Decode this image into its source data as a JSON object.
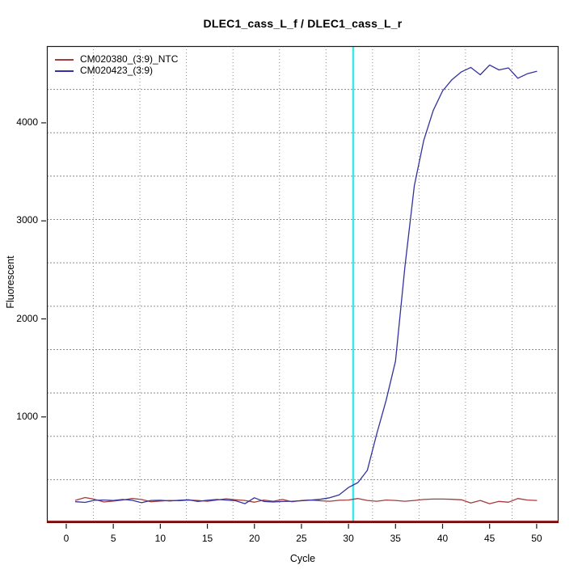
{
  "window": {
    "background": "#ffffff"
  },
  "chart_data": {
    "type": "line",
    "title": "DLEC1_cass_L_f / DLEC1_cass_L_r",
    "xlabel": "Cycle",
    "ylabel": "Fluorescent",
    "x_ticks": [
      0,
      5,
      10,
      15,
      20,
      25,
      30,
      35,
      40,
      45,
      50
    ],
    "y_ticks": [
      1000,
      2000,
      3000,
      4000
    ],
    "xlim": [
      -2.06,
      52.33
    ],
    "ylim": [
      -82,
      4783
    ],
    "grid": {
      "nx": 11,
      "ny": 11,
      "color": "#8c8c8c",
      "style": "dotted"
    },
    "legend_position": "top-left",
    "cycles": [
      1,
      2,
      3,
      4,
      5,
      6,
      7,
      8,
      9,
      10,
      11,
      12,
      13,
      14,
      15,
      16,
      17,
      18,
      19,
      20,
      21,
      22,
      23,
      24,
      25,
      26,
      27,
      28,
      29,
      30,
      31,
      32,
      33,
      34,
      35,
      36,
      37,
      38,
      39,
      40,
      41,
      42,
      43,
      44,
      45,
      46,
      47,
      48,
      49,
      50
    ],
    "series": [
      {
        "name": "CM020380_(3:9)_NTC",
        "color": "#a43c3c",
        "values": [
          150,
          178,
          160,
          132,
          142,
          152,
          168,
          158,
          135,
          142,
          148,
          145,
          152,
          148,
          140,
          152,
          165,
          155,
          148,
          130,
          152,
          140,
          158,
          135,
          148,
          152,
          145,
          140,
          150,
          152,
          168,
          148,
          140,
          152,
          148,
          140,
          148,
          158,
          162,
          162,
          160,
          155,
          122,
          148,
          115,
          138,
          130,
          168,
          152,
          148
        ]
      },
      {
        "name": "CM020423_(3:9)",
        "color": "#3232a0",
        "values": [
          135,
          128,
          150,
          152,
          148,
          158,
          150,
          125,
          148,
          150,
          143,
          150,
          155,
          138,
          150,
          158,
          152,
          145,
          115,
          175,
          138,
          132,
          138,
          140,
          145,
          152,
          160,
          175,
          205,
          280,
          330,
          455,
          825,
          1170,
          1570,
          2530,
          3360,
          3820,
          4125,
          4325,
          4440,
          4520,
          4565,
          4490,
          4590,
          4540,
          4560,
          4455,
          4500,
          4525
        ]
      }
    ],
    "threshold_vline": {
      "x": 30.5,
      "color": "#3fe9e9"
    },
    "baseline_hline": {
      "y": 0,
      "color": "#8b0000"
    },
    "axis_color": "#1a1a1a"
  }
}
